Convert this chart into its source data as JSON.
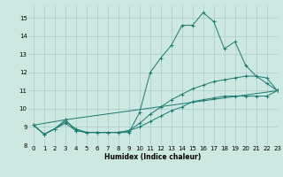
{
  "xlabel": "Humidex (Indice chaleur)",
  "bg_color": "#cce8e0",
  "grid_color": "#aacccc",
  "line_color": "#1a7a6e",
  "xlim": [
    -0.5,
    23
  ],
  "ylim": [
    8,
    15.7
  ],
  "xticks": [
    0,
    1,
    2,
    3,
    4,
    5,
    6,
    7,
    8,
    9,
    10,
    11,
    12,
    13,
    14,
    15,
    16,
    17,
    18,
    19,
    20,
    21,
    22,
    23
  ],
  "yticks": [
    8,
    9,
    10,
    11,
    12,
    13,
    14,
    15
  ],
  "series1_x": [
    0,
    1,
    2,
    3,
    4,
    5,
    6,
    7,
    8,
    9,
    10,
    11,
    12,
    13,
    14,
    15,
    16,
    17,
    18,
    19,
    20,
    21,
    22,
    23
  ],
  "series1_y": [
    9.1,
    8.6,
    8.9,
    9.4,
    8.8,
    8.7,
    8.7,
    8.7,
    8.7,
    8.7,
    9.8,
    12.0,
    12.8,
    13.5,
    14.6,
    14.6,
    15.3,
    14.8,
    13.3,
    13.7,
    12.4,
    11.8,
    11.4,
    11.0
  ],
  "series2_x": [
    0,
    1,
    2,
    3,
    4,
    5,
    6,
    7,
    8,
    9,
    10,
    11,
    12,
    13,
    14,
    15,
    16,
    17,
    18,
    19,
    20,
    21,
    22,
    23
  ],
  "series2_y": [
    9.1,
    8.6,
    8.9,
    9.3,
    8.9,
    8.7,
    8.7,
    8.7,
    8.7,
    8.8,
    9.2,
    9.7,
    10.1,
    10.5,
    10.8,
    11.1,
    11.3,
    11.5,
    11.6,
    11.7,
    11.8,
    11.8,
    11.7,
    11.0
  ],
  "series3_x": [
    0,
    1,
    2,
    3,
    4,
    5,
    6,
    7,
    8,
    9,
    10,
    11,
    12,
    13,
    14,
    15,
    16,
    17,
    18,
    19,
    20,
    21,
    22,
    23
  ],
  "series3_y": [
    9.1,
    8.6,
    8.9,
    9.2,
    8.8,
    8.7,
    8.7,
    8.7,
    8.7,
    8.8,
    9.0,
    9.3,
    9.6,
    9.9,
    10.1,
    10.4,
    10.5,
    10.6,
    10.7,
    10.7,
    10.7,
    10.7,
    10.7,
    11.0
  ],
  "series4_x": [
    0,
    3,
    23
  ],
  "series4_y": [
    9.1,
    9.4,
    11.0
  ],
  "xlabel_fontsize": 5.5,
  "tick_fontsize": 5
}
